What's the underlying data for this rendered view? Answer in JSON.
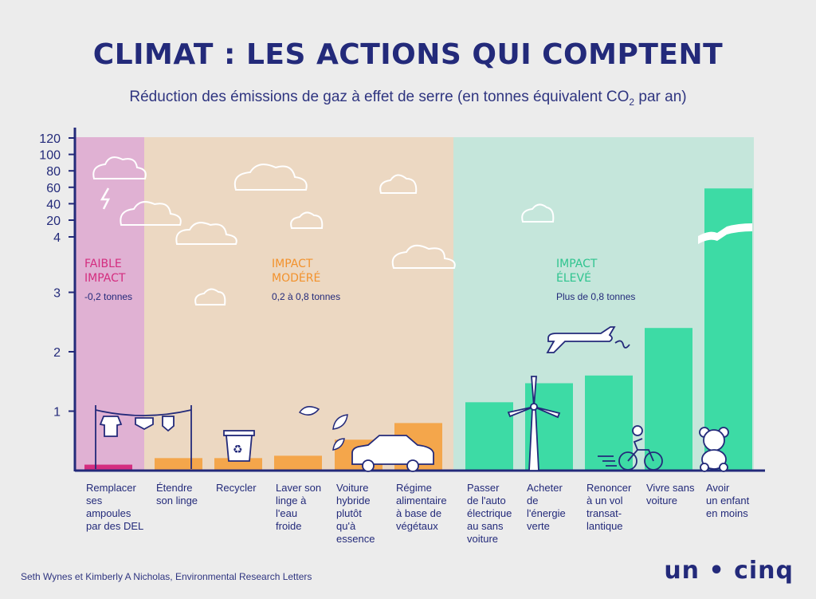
{
  "title": "CLIMAT : LES ACTIONS QUI COMPTENT",
  "subtitle": {
    "main": "Réduction des émissions de gaz à effet de serre (en tonnes équivalent CO",
    "sub": "2",
    "end": " par an)"
  },
  "zones": [
    {
      "name": "FAIBLE\nIMPACT",
      "range": "-0,2 tonnes",
      "color": "#e0b1d3",
      "label_color": "#d42d7f"
    },
    {
      "name": "IMPACT\nMODÉRÉ",
      "range": "0,2 à 0,8 tonnes",
      "color": "#ecd8c2",
      "label_color": "#f2922d"
    },
    {
      "name": "IMPACT\nÉLEVÉ",
      "range": "Plus de 0,8 tonnes",
      "color": "#c5e6db",
      "label_color": "#2fc48f"
    }
  ],
  "chart_data": {
    "type": "bar",
    "title": "CLIMAT : LES ACTIONS QUI COMPTENT",
    "ylabel": "Réduction des émissions de gaz à effet de serre (en tonnes équivalent CO2 par an)",
    "y_ticks_lower": [
      "1",
      "2",
      "3"
    ],
    "y_ticks_upper": [
      "4",
      "20",
      "40",
      "60",
      "80",
      "100",
      "120"
    ],
    "ylim": [
      0,
      120
    ],
    "categories": [
      "Remplacer ses ampoules par des DEL",
      "Étendre son linge",
      "Recycler",
      "Laver son linge à l'eau froide",
      "Voiture hybride plutôt qu'à essence",
      "Régime alimentaire à base de végétaux",
      "Passer de l'auto électrique au sans voiture",
      "Acheter de l'énergie verte",
      "Renoncer à un vol transat-lantique",
      "Vivre sans voiture",
      "Avoir un enfant en moins"
    ],
    "values": [
      0.1,
      0.21,
      0.21,
      0.25,
      0.52,
      0.8,
      1.15,
      1.47,
      1.6,
      2.4,
      58.6
    ],
    "zone_index": [
      0,
      1,
      1,
      1,
      1,
      1,
      2,
      2,
      2,
      2,
      2
    ],
    "colors": {
      "low": "#d42d7f",
      "moderate": "#f4a64b",
      "high": "#3ddba5"
    }
  },
  "labels": [
    "Remplacer\nses\nampoules\npar des DEL",
    "Étendre\nson linge",
    "Recycler",
    "Laver son\nlinge à\nl'eau\nfroide",
    "Voiture\nhybride\nplutôt\nqu'à\nessence",
    "Régime\nalimentaire\nà base de\nvégétaux",
    "Passer\nde l'auto\nélectrique\nau sans\nvoiture",
    "Acheter\nde\nl'énergie\nverte",
    "Renoncer\nà un vol\ntransat-\nlantique",
    "Vivre sans\nvoiture",
    "Avoir\nun enfant\nen moins"
  ],
  "source": "Seth Wynes et Kimberly A Nicholas, Environmental Research Letters",
  "brand": "un • cinq"
}
